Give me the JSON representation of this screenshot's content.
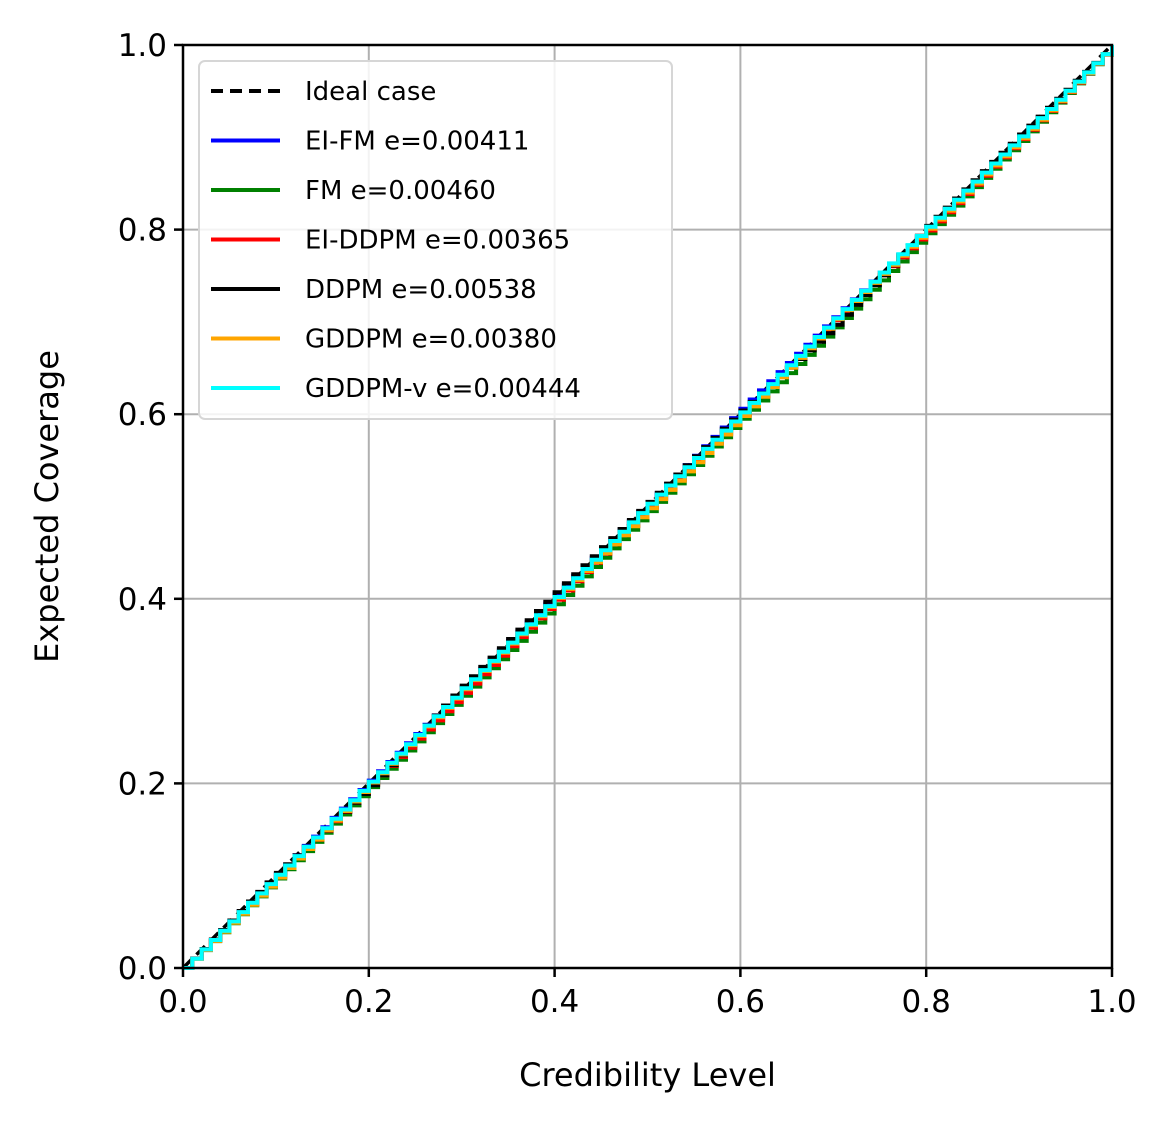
{
  "chart_data": {
    "type": "line",
    "xlabel": "Credibility Level",
    "ylabel": "Expected Coverage",
    "xlim": [
      0.0,
      1.0
    ],
    "ylim": [
      0.0,
      1.0
    ],
    "xticks": [
      "0.0",
      "0.2",
      "0.4",
      "0.6",
      "0.8",
      "1.0"
    ],
    "yticks": [
      "0.0",
      "0.2",
      "0.4",
      "0.6",
      "0.8",
      "1.0"
    ],
    "grid": true,
    "legend_position": "upper-left",
    "series": [
      {
        "name": "Ideal case",
        "color": "#000000",
        "dashed": true,
        "x": [
          0.0,
          1.0
        ],
        "y": [
          0.0,
          1.0
        ]
      },
      {
        "name": "EI-FM e=0.00411",
        "color": "#0000ff",
        "x": [
          0.0,
          0.1,
          0.2,
          0.3,
          0.4,
          0.5,
          0.6,
          0.7,
          0.8,
          0.9,
          1.0
        ],
        "y": [
          0.0,
          0.102,
          0.203,
          0.304,
          0.405,
          0.504,
          0.606,
          0.705,
          0.802,
          0.902,
          1.0
        ]
      },
      {
        "name": "FM e=0.00460",
        "color": "#008000",
        "x": [
          0.0,
          0.1,
          0.2,
          0.3,
          0.4,
          0.5,
          0.6,
          0.7,
          0.8,
          0.9,
          1.0
        ],
        "y": [
          0.0,
          0.097,
          0.196,
          0.295,
          0.394,
          0.495,
          0.595,
          0.694,
          0.796,
          0.896,
          1.0
        ]
      },
      {
        "name": "EI-DDPM e=0.00365",
        "color": "#ff0000",
        "x": [
          0.0,
          0.1,
          0.2,
          0.3,
          0.4,
          0.5,
          0.6,
          0.7,
          0.8,
          0.9,
          1.0
        ],
        "y": [
          0.0,
          0.099,
          0.199,
          0.298,
          0.399,
          0.499,
          0.599,
          0.702,
          0.799,
          0.898,
          1.0
        ]
      },
      {
        "name": "DDPM e=0.00538",
        "color": "#000000",
        "x": [
          0.0,
          0.1,
          0.2,
          0.3,
          0.4,
          0.5,
          0.6,
          0.7,
          0.8,
          0.9,
          1.0
        ],
        "y": [
          0.0,
          0.103,
          0.198,
          0.306,
          0.407,
          0.505,
          0.604,
          0.697,
          0.804,
          0.903,
          1.0
        ]
      },
      {
        "name": "GDDPM e=0.00380",
        "color": "#ffa500",
        "x": [
          0.0,
          0.1,
          0.2,
          0.3,
          0.4,
          0.5,
          0.6,
          0.7,
          0.8,
          0.9,
          1.0
        ],
        "y": [
          0.0,
          0.098,
          0.201,
          0.302,
          0.401,
          0.498,
          0.598,
          0.703,
          0.801,
          0.899,
          1.0
        ]
      },
      {
        "name": "GDDPM-v e=0.00444",
        "color": "#00ffff",
        "x": [
          0.0,
          0.1,
          0.2,
          0.3,
          0.4,
          0.5,
          0.6,
          0.7,
          0.8,
          0.9,
          1.0
        ],
        "y": [
          0.0,
          0.101,
          0.202,
          0.303,
          0.402,
          0.503,
          0.602,
          0.704,
          0.803,
          0.901,
          1.0
        ]
      }
    ]
  }
}
